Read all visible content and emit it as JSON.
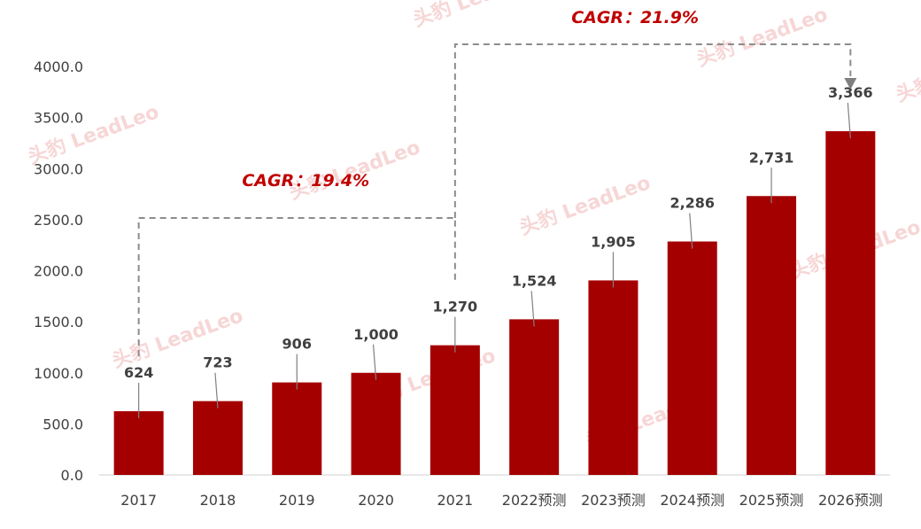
{
  "chart_data": {
    "type": "bar",
    "categories": [
      "2017",
      "2018",
      "2019",
      "2020",
      "2021",
      "2022预测",
      "2023预测",
      "2024预测",
      "2025预测",
      "2026预测"
    ],
    "values": [
      624,
      723,
      906,
      1000,
      1270,
      1524,
      1905,
      2286,
      2731,
      3366
    ],
    "value_labels": [
      "624",
      "723",
      "906",
      "1,000",
      "1,270",
      "1,524",
      "1,905",
      "2,286",
      "2,731",
      "3,366"
    ],
    "y_ticks": [
      "0.0",
      "500.0",
      "1000.0",
      "1500.0",
      "2000.0",
      "2500.0",
      "3000.0",
      "3500.0",
      "4000.0"
    ],
    "ylim": [
      0,
      4000
    ],
    "bar_color": "#a50000",
    "grid": false,
    "legend": "none",
    "annotations": [
      {
        "text": "CAGR：19.4%",
        "from": "2017",
        "to": "2021",
        "arrow": false
      },
      {
        "text": "CAGR：21.9%",
        "from": "2021",
        "to": "2026预测",
        "arrow": true
      }
    ],
    "watermark": "头豹 LeadLeo"
  }
}
